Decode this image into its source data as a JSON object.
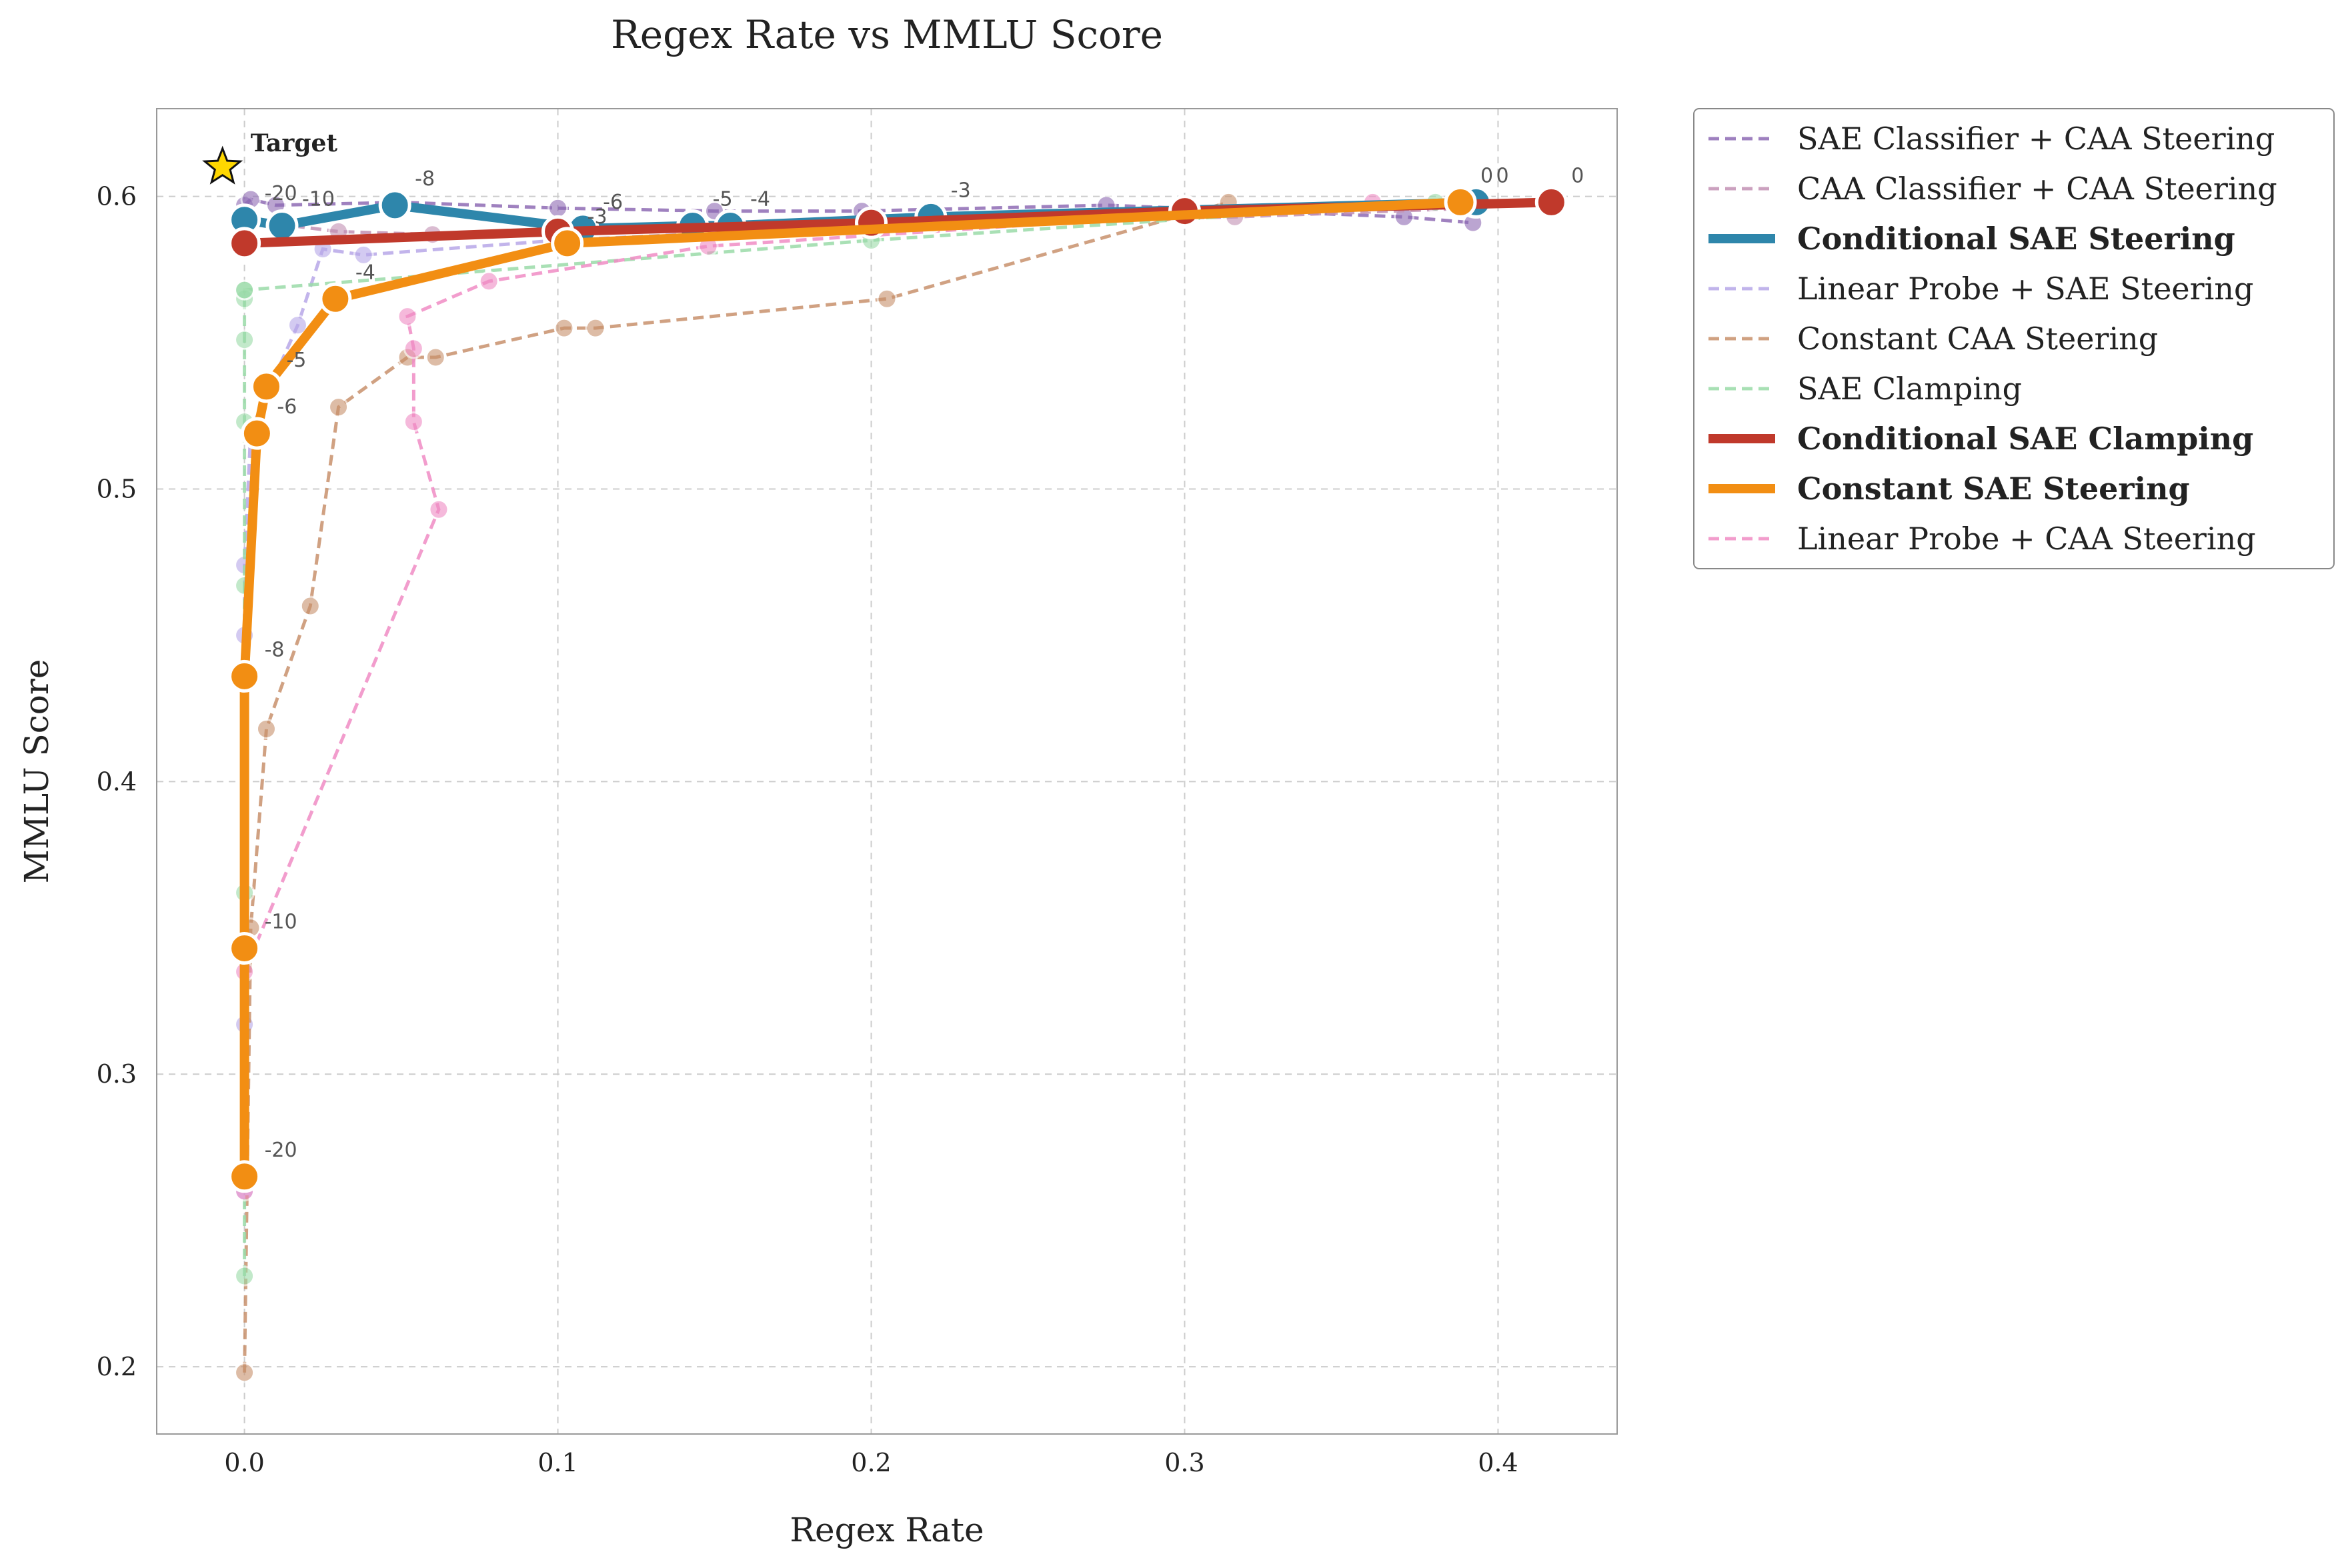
{
  "chart_data": {
    "type": "line",
    "title": "Regex Rate vs MMLU Score",
    "xlabel": "Regex Rate",
    "ylabel": "MMLU Score",
    "xlim": [
      -0.028,
      0.438
    ],
    "ylim": [
      0.177,
      0.63
    ],
    "xticks": [
      "0.0",
      "0.1",
      "0.2",
      "0.3",
      "0.4"
    ],
    "xtick_values": [
      0.0,
      0.1,
      0.2,
      0.3,
      0.4
    ],
    "yticks": [
      "0.2",
      "0.3",
      "0.4",
      "0.5",
      "0.6"
    ],
    "ytick_values": [
      0.2,
      0.3,
      0.4,
      0.5,
      0.6
    ],
    "grid": true,
    "legend_position": "outside-right-top",
    "target": {
      "label": "Target",
      "x": -0.007,
      "y": 0.61,
      "color": "#FFD700"
    },
    "series": [
      {
        "name": "SAE Classifier + CAA Steering",
        "color": "#8E6BB4",
        "style": "dashed",
        "bold": false,
        "x": [
          0.0,
          0.002,
          0.01,
          0.05,
          0.1,
          0.15,
          0.197,
          0.275,
          0.37,
          0.392
        ],
        "y": [
          0.597,
          0.599,
          0.597,
          0.598,
          0.596,
          0.595,
          0.595,
          0.597,
          0.593,
          0.591
        ],
        "labels": []
      },
      {
        "name": "CAA Classifier + CAA Steering",
        "color": "#C291B4",
        "style": "dashed",
        "bold": false,
        "x": [
          0.0,
          0.03,
          0.06,
          0.1,
          0.16,
          0.218,
          0.316,
          0.392
        ],
        "y": [
          0.592,
          0.588,
          0.587,
          0.587,
          0.589,
          0.591,
          0.593,
          0.596
        ],
        "labels": []
      },
      {
        "name": "Conditional SAE Steering",
        "color": "#2E86AB",
        "style": "solid",
        "bold": true,
        "x": [
          0.0,
          0.012,
          0.048,
          0.108,
          0.143,
          0.155,
          0.219,
          0.393
        ],
        "y": [
          0.592,
          0.59,
          0.597,
          0.589,
          0.59,
          0.59,
          0.593,
          0.598
        ],
        "labels": [
          "-20",
          "-10",
          "-8",
          "-6",
          "-5",
          "-4",
          "-3",
          "0"
        ]
      },
      {
        "name": "Linear Probe + SAE Steering",
        "color": "#B7A7E8",
        "style": "dashed",
        "bold": false,
        "x": [
          0.0,
          0.0,
          0.0,
          0.0,
          0.002,
          0.017,
          0.025,
          0.038,
          0.1,
          0.2,
          0.39
        ],
        "y": [
          0.26,
          0.317,
          0.45,
          0.474,
          0.52,
          0.556,
          0.582,
          0.58,
          0.585,
          0.59,
          0.597
        ],
        "labels": []
      },
      {
        "name": "Constant CAA Steering",
        "color": "#C8916C",
        "style": "dashed",
        "bold": false,
        "x": [
          0.0,
          0.002,
          0.007,
          0.021,
          0.03,
          0.052,
          0.061,
          0.102,
          0.112,
          0.205,
          0.314
        ],
        "y": [
          0.198,
          0.35,
          0.418,
          0.46,
          0.528,
          0.545,
          0.545,
          0.555,
          0.555,
          0.565,
          0.598
        ],
        "labels": []
      },
      {
        "name": "SAE Clamping",
        "color": "#9ADBA8",
        "style": "dashed",
        "bold": false,
        "x": [
          0.0,
          0.0,
          0.0,
          0.0,
          0.0,
          0.0,
          0.0,
          0.0,
          0.2,
          0.38
        ],
        "y": [
          0.231,
          0.362,
          0.467,
          0.523,
          0.551,
          0.565,
          0.568,
          0.568,
          0.585,
          0.598
        ],
        "labels": []
      },
      {
        "name": "Conditional SAE Clamping",
        "color": "#C0392B",
        "style": "solid",
        "bold": true,
        "x": [
          0.0,
          0.1,
          0.2,
          0.3,
          0.417
        ],
        "y": [
          0.584,
          0.588,
          0.591,
          0.595,
          0.598
        ],
        "labels": [
          "",
          "",
          "",
          "",
          "0"
        ]
      },
      {
        "name": "Constant SAE Steering",
        "color": "#F28E13",
        "style": "solid",
        "bold": true,
        "x": [
          0.0,
          0.0,
          0.0,
          0.004,
          0.007,
          0.029,
          0.103,
          0.388
        ],
        "y": [
          0.265,
          0.343,
          0.436,
          0.519,
          0.535,
          0.565,
          0.584,
          0.598
        ],
        "labels": [
          "-20",
          "-10",
          "-8",
          "-6",
          "-5",
          "-4",
          "-3",
          "0"
        ]
      },
      {
        "name": "Linear Probe + CAA Steering",
        "color": "#F08CC4",
        "style": "dashed",
        "bold": false,
        "x": [
          0.0,
          0.0,
          0.062,
          0.054,
          0.054,
          0.052,
          0.078,
          0.148,
          0.36
        ],
        "y": [
          0.26,
          0.335,
          0.493,
          0.523,
          0.548,
          0.559,
          0.571,
          0.583,
          0.598
        ],
        "labels": []
      }
    ]
  }
}
